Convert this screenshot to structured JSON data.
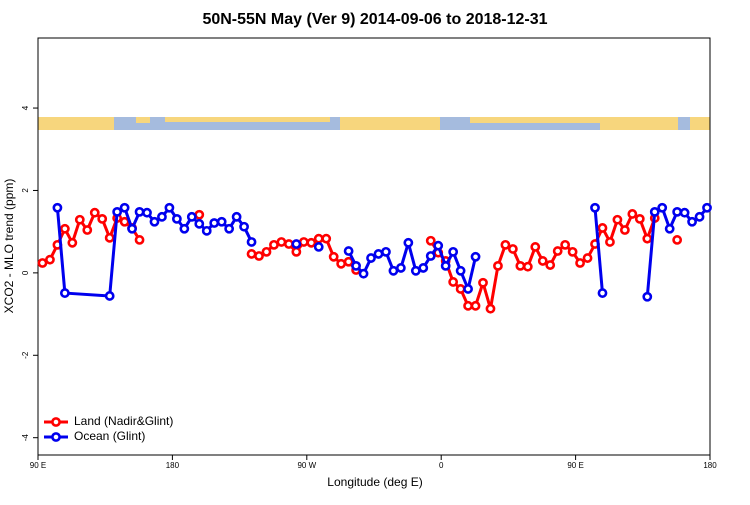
{
  "chart_data": {
    "type": "line",
    "title": "50N-55N May (Ver 9)   2014-09-06 to 2018-12-31",
    "x_label": "Longitude (deg E)",
    "y_label": "XCO2 - MLO trend (ppm)",
    "xlim": [
      90,
      540
    ],
    "xticks": [
      {
        "value": 90,
        "label": "90 E"
      },
      180,
      {
        "value": 270,
        "label": "90 W"
      },
      {
        "value": 360,
        "label": "0"
      },
      {
        "value": 450,
        "label": "90 E"
      },
      {
        "value": 540,
        "label": "180"
      }
    ],
    "ylim": [
      -4.42,
      5.7
    ],
    "yticks": [
      -4,
      -2,
      0,
      2,
      4
    ],
    "legend": "bottom-left",
    "series": [
      {
        "name": "Land (Nadir&Glint)",
        "color": "#ff0000",
        "x": [
          93,
          98,
          103,
          108,
          113,
          118,
          123,
          128,
          133,
          138,
          143,
          148,
          153,
          158,
          163,
          198,
          203,
          233,
          238,
          243,
          248,
          253,
          258,
          263,
          268,
          273,
          278,
          283,
          288,
          293,
          298,
          303,
          308,
          353,
          358,
          363,
          368,
          373,
          378,
          383,
          388,
          393,
          398,
          403,
          408,
          413,
          418,
          423,
          428,
          433,
          438,
          443,
          448,
          453,
          458,
          463,
          468,
          473,
          478,
          483,
          488,
          493,
          498,
          503,
          508,
          518
        ],
        "values": [
          0.24,
          0.32,
          0.68,
          1.07,
          0.73,
          1.29,
          1.04,
          1.46,
          1.31,
          0.85,
          1.33,
          1.24,
          1.09,
          0.8,
          null,
          1.41,
          null,
          0.46,
          0.41,
          0.51,
          0.68,
          0.75,
          0.7,
          0.51,
          0.75,
          0.73,
          0.83,
          0.83,
          0.39,
          0.22,
          0.27,
          0.07,
          null,
          0.78,
          0.49,
          0.29,
          -0.22,
          -0.39,
          -0.8,
          -0.8,
          -0.24,
          -0.87,
          0.17,
          0.68,
          0.58,
          0.17,
          0.15,
          0.63,
          0.29,
          0.19,
          0.53,
          0.68,
          0.51,
          0.24,
          0.36,
          0.7,
          1.09,
          0.75,
          1.29,
          1.04,
          1.43,
          1.31,
          0.83,
          1.33,
          null,
          0.8
        ]
      },
      {
        "name": "Ocean (Glint)",
        "color": "#0000ee",
        "x": [
          103,
          108,
          138,
          143,
          148,
          153,
          158,
          163,
          168,
          173,
          178,
          183,
          188,
          193,
          198,
          203,
          208,
          213,
          218,
          223,
          228,
          233,
          238,
          263,
          268,
          278,
          283,
          298,
          303,
          308,
          313,
          318,
          323,
          328,
          333,
          338,
          343,
          348,
          353,
          358,
          363,
          368,
          373,
          378,
          383,
          388,
          463,
          468,
          473,
          498,
          503,
          508,
          513,
          518,
          523,
          528,
          533,
          538
        ],
        "values": [
          1.58,
          -0.49,
          -0.56,
          1.48,
          1.58,
          1.07,
          1.48,
          1.46,
          1.24,
          1.36,
          1.58,
          1.31,
          1.07,
          1.36,
          1.19,
          1.02,
          1.21,
          1.24,
          1.07,
          1.36,
          1.12,
          0.75,
          null,
          0.7,
          null,
          0.63,
          null,
          0.53,
          0.17,
          -0.02,
          0.36,
          0.46,
          0.51,
          0.05,
          0.12,
          0.73,
          0.05,
          0.12,
          0.41,
          0.66,
          0.17,
          0.51,
          0.05,
          -0.39,
          0.39,
          null,
          1.58,
          -0.49,
          null,
          -0.58,
          1.48,
          1.58,
          1.07,
          1.48,
          1.46,
          1.24,
          1.36,
          1.58
        ]
      }
    ]
  }
}
